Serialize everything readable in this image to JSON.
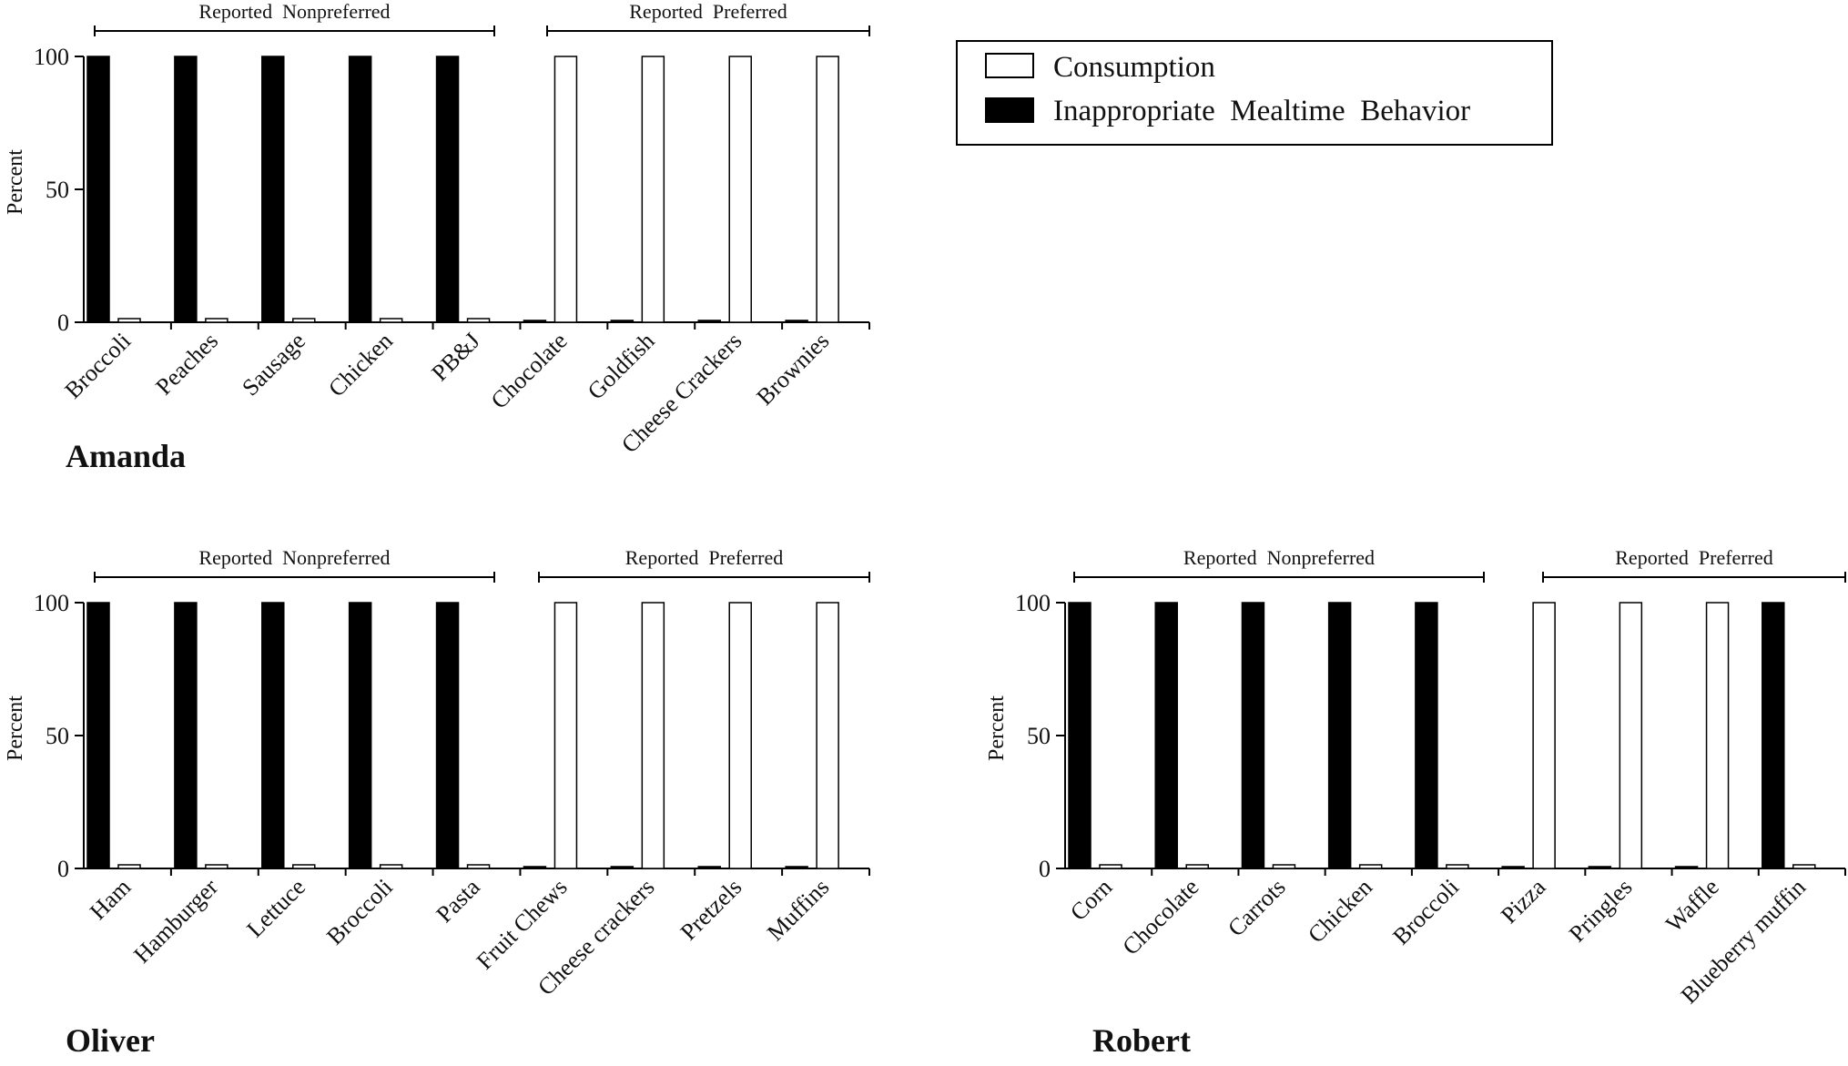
{
  "legend": {
    "items": [
      {
        "label": "Consumption",
        "fill": "#ffffff"
      },
      {
        "label": "Inappropriate  Mealtime  Behavior",
        "fill": "#000000"
      }
    ]
  },
  "colors": {
    "imb": "#000000",
    "consumption": "#ffffff",
    "stroke": "#000000"
  },
  "chart_data": [
    {
      "type": "bar",
      "title": "Amanda",
      "ylabel": "Percent",
      "ylim": [
        0,
        100
      ],
      "yticks": [
        0,
        50,
        100
      ],
      "grid": false,
      "legend_position": "top-right",
      "groups": [
        {
          "label": "Reported  Nonpreferred",
          "categories": [
            "Broccoli",
            "Peaches",
            "Sausage",
            "Chicken",
            "PB&J"
          ]
        },
        {
          "label": "Reported  Preferred",
          "categories": [
            "Chocolate",
            "Goldfish",
            "Cheese Crackers",
            "Brownies"
          ]
        }
      ],
      "categories": [
        "Broccoli",
        "Peaches",
        "Sausage",
        "Chicken",
        "PB&J",
        "Chocolate",
        "Goldfish",
        "Cheese Crackers",
        "Brownies"
      ],
      "series": [
        {
          "name": "Inappropriate  Mealtime  Behavior",
          "values": [
            100,
            100,
            100,
            100,
            100,
            0,
            0,
            0,
            0
          ]
        },
        {
          "name": "Consumption",
          "values": [
            0,
            0,
            0,
            0,
            0,
            100,
            100,
            100,
            100
          ]
        }
      ]
    },
    {
      "type": "bar",
      "title": "Oliver",
      "ylabel": "Percent",
      "ylim": [
        0,
        100
      ],
      "yticks": [
        0,
        50,
        100
      ],
      "grid": false,
      "groups": [
        {
          "label": "Reported  Nonpreferred",
          "categories": [
            "Ham",
            "Hamburger",
            "Lettuce",
            "Broccoli",
            "Pasta"
          ]
        },
        {
          "label": "Reported  Preferred",
          "categories": [
            "Fruit Chews",
            "Cheese crackers",
            "Pretzels",
            "Muffins"
          ]
        }
      ],
      "categories": [
        "Ham",
        "Hamburger",
        "Lettuce",
        "Broccoli",
        "Pasta",
        "Fruit Chews",
        "Cheese crackers",
        "Pretzels",
        "Muffins"
      ],
      "series": [
        {
          "name": "Inappropriate  Mealtime  Behavior",
          "values": [
            100,
            100,
            100,
            100,
            100,
            0,
            0,
            0,
            0
          ]
        },
        {
          "name": "Consumption",
          "values": [
            0,
            0,
            0,
            0,
            0,
            100,
            100,
            100,
            100
          ]
        }
      ]
    },
    {
      "type": "bar",
      "title": "Robert",
      "ylabel": "Percent",
      "ylim": [
        0,
        100
      ],
      "yticks": [
        0,
        50,
        100
      ],
      "grid": false,
      "groups": [
        {
          "label": "Reported  Nonpreferred",
          "categories": [
            "Corn",
            "Chocolate",
            "Carrots",
            "Chicken",
            "Broccoli"
          ]
        },
        {
          "label": "Reported  Preferred",
          "categories": [
            "Pizza",
            "Pringles",
            "Waffle",
            "Blueberry muffin"
          ]
        }
      ],
      "categories": [
        "Corn",
        "Chocolate",
        "Carrots",
        "Chicken",
        "Broccoli",
        "Pizza",
        "Pringles",
        "Waffle",
        "Blueberry muffin"
      ],
      "series": [
        {
          "name": "Inappropriate  Mealtime  Behavior",
          "values": [
            100,
            100,
            100,
            100,
            100,
            0,
            0,
            0,
            100
          ]
        },
        {
          "name": "Consumption",
          "values": [
            0,
            0,
            0,
            0,
            0,
            100,
            100,
            100,
            0
          ]
        }
      ]
    }
  ]
}
